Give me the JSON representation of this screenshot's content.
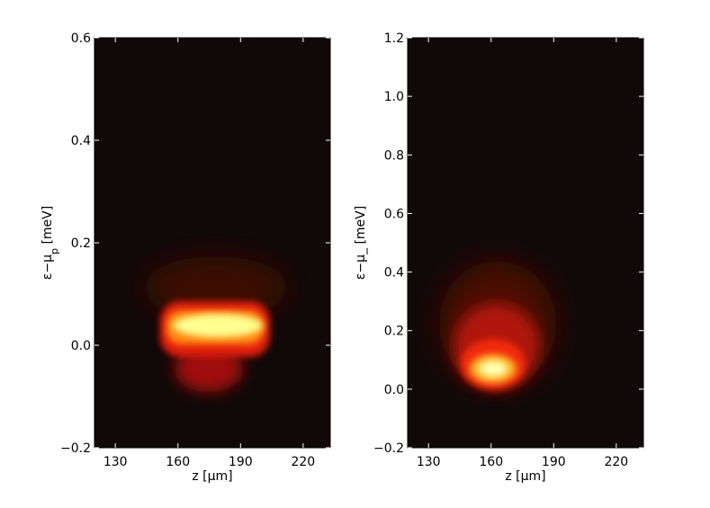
{
  "chart_data": [
    {
      "type": "heatmap",
      "xlabel": "z [µm]",
      "ylabel_main": "ε−μ",
      "ylabel_sub": "p",
      "ylabel_unit": " [meV]",
      "xlim": [
        120,
        233
      ],
      "xticks": [
        130,
        160,
        190,
        220
      ],
      "ylim": [
        -0.2,
        0.6
      ],
      "yticks": [
        {
          "value": -0.2,
          "label": "−0.2"
        },
        {
          "value": 0,
          "label": "0.0"
        },
        0.2,
        0.4,
        0.6
      ]
    },
    {
      "type": "heatmap",
      "xlabel": "z [µm]",
      "ylabel_main": "ε−μ_",
      "ylabel_unit": " [meV]",
      "xlim": [
        120,
        233
      ],
      "xticks": [
        130,
        160,
        190,
        220
      ],
      "ylim": [
        -0.2,
        1.2
      ],
      "yticks": [
        {
          "value": -0.2,
          "label": "−0.2"
        },
        {
          "value": 0,
          "label": "0.0"
        },
        0.2,
        0.4,
        0.6,
        0.8,
        {
          "value": 1.0,
          "label": "1.0"
        },
        1.2
      ]
    }
  ]
}
